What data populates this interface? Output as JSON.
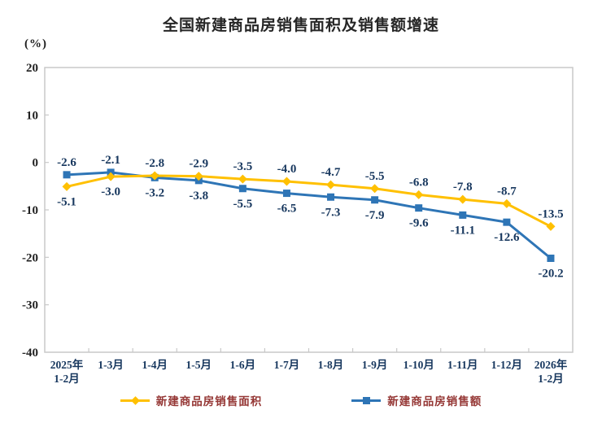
{
  "title": "全国新建商品房销售面积及销售额增速",
  "unit_label": "(%)",
  "colors": {
    "title_text": "#262626",
    "axis_border": "#C8C8C8",
    "axis_number_text": "#1f1f1f",
    "label_text": "#17375E",
    "legend_text": "#953735",
    "series_area": "#FFC000",
    "series_value": "#2E75B6"
  },
  "chart_data": {
    "type": "line",
    "title": "全国新建商品房销售面积及销售额增速",
    "ylabel": "(%)",
    "xlabel": "",
    "ylim": [
      -40,
      20
    ],
    "ytick_step": 10,
    "yticks": [
      20,
      10,
      0,
      -10,
      -20,
      -30,
      -40
    ],
    "grid": false,
    "legend_position": "bottom",
    "categories": [
      "2025年\n1-2月",
      "1-3月",
      "1-4月",
      "1-5月",
      "1-6月",
      "1-7月",
      "1-8月",
      "1-9月",
      "1-10月",
      "1-11月",
      "1-12月",
      "2026年\n1-2月"
    ],
    "series": [
      {
        "name": "新建商品房销售面积",
        "marker": "diamond",
        "color": "#FFC000",
        "values": [
          -5.1,
          -3.0,
          -2.8,
          -2.9,
          -3.5,
          -4.0,
          -4.7,
          -5.5,
          -6.8,
          -7.8,
          -8.7,
          -13.5
        ]
      },
      {
        "name": "新建商品房销售额",
        "marker": "square",
        "color": "#2E75B6",
        "values": [
          -2.6,
          -2.1,
          -3.2,
          -3.8,
          -5.5,
          -6.5,
          -7.3,
          -7.9,
          -9.6,
          -11.1,
          -12.6,
          -20.2
        ]
      }
    ]
  }
}
